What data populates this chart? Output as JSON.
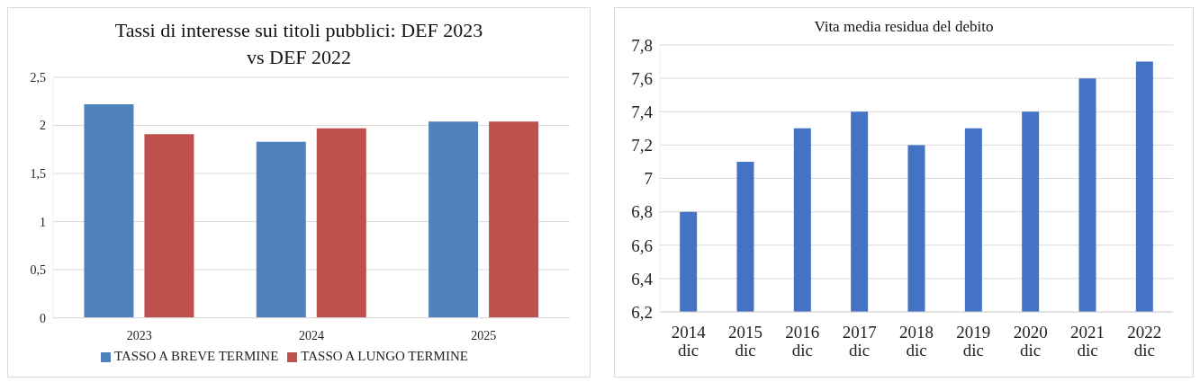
{
  "chart_data": [
    {
      "type": "bar",
      "title": "Tassi di interesse sui titoli pubblici: DEF 2023 vs DEF 2022",
      "categories": [
        "2023",
        "2024",
        "2025"
      ],
      "series": [
        {
          "name": "TASSO A BREVE TERMINE",
          "color": "#4f81bd",
          "values": [
            2.22,
            1.83,
            2.04
          ]
        },
        {
          "name": "TASSO A LUNGO TERMINE",
          "color": "#c0504d",
          "values": [
            1.91,
            1.97,
            2.04
          ]
        }
      ],
      "ylim": [
        0,
        2.5
      ],
      "yticks": [
        0,
        {
          "value": 0.5,
          "label": "0,5"
        },
        1,
        {
          "value": 1.5,
          "label": "1,5"
        },
        2,
        {
          "value": 2.5,
          "label": "2,5"
        }
      ],
      "grid": "y",
      "legend": "bottom"
    },
    {
      "type": "bar",
      "title": "Vita media residua del debito",
      "categories": [
        "2014 dic",
        "2015 dic",
        "2016 dic",
        "2017 dic",
        "2018 dic",
        "2019 dic",
        "2020 dic",
        "2021 dic",
        "2022 dic"
      ],
      "values": [
        6.8,
        7.1,
        7.3,
        7.4,
        7.2,
        7.3,
        7.4,
        7.6,
        7.7
      ],
      "color": "#4472c4",
      "ylim": [
        6.2,
        7.8
      ],
      "yticks": [
        {
          "value": 6.2,
          "label": "6,2"
        },
        {
          "value": 6.4,
          "label": "6,4"
        },
        {
          "value": 6.6,
          "label": "6,6"
        },
        {
          "value": 6.8,
          "label": "6,8"
        },
        7,
        {
          "value": 7.2,
          "label": "7,2"
        },
        {
          "value": 7.4,
          "label": "7,4"
        },
        {
          "value": 7.6,
          "label": "7,6"
        },
        {
          "value": 7.8,
          "label": "7,8"
        }
      ],
      "grid": "y"
    }
  ]
}
